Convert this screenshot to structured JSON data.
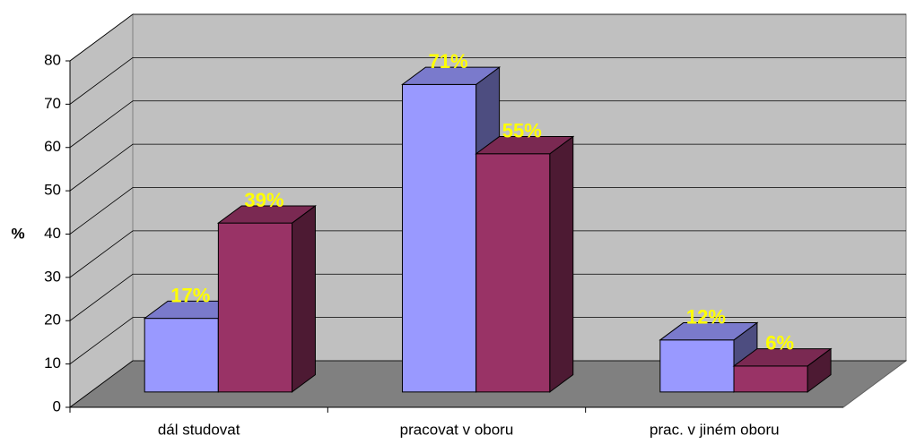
{
  "chart_data": {
    "type": "bar3d",
    "y_label": "%",
    "categories": [
      "dál studovat",
      "pracovat v oboru",
      "prac. v jiném oboru"
    ],
    "series": [
      {
        "color": "#9999ff",
        "values": [
          17,
          71,
          12
        ],
        "value_labels": [
          "17%",
          "71%",
          "12%"
        ]
      },
      {
        "color": "#993366",
        "values": [
          39,
          55,
          6
        ],
        "value_labels": [
          "39%",
          "55%",
          "6%"
        ]
      }
    ],
    "ylim": [
      0,
      80
    ],
    "yticks": [
      0,
      10,
      20,
      30,
      40,
      50,
      60,
      70,
      80
    ],
    "grid": true,
    "value_label_color": "#ffff00"
  }
}
